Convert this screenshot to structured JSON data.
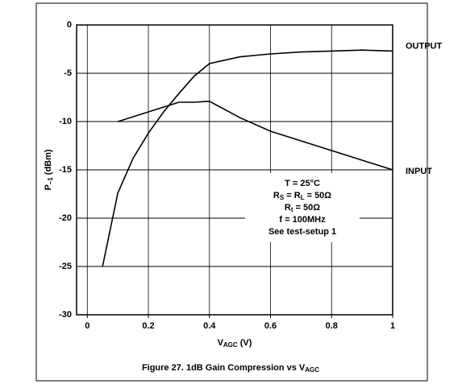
{
  "chart_data": {
    "type": "line",
    "title": [
      {
        "text": "Figure 27.  1dB Gain Compression vs V"
      },
      {
        "text": "AGC",
        "sub": true
      }
    ],
    "xlabel": [
      {
        "text": "V"
      },
      {
        "text": "AGC",
        "sub": true
      },
      {
        "text": " (V)"
      }
    ],
    "ylabel": [
      {
        "text": "P"
      },
      {
        "text": "–1",
        "sub": true
      },
      {
        "text": " (dBm)"
      }
    ],
    "x": [
      0.05,
      0.1,
      0.15,
      0.2,
      0.25,
      0.3,
      0.35,
      0.4,
      0.5,
      0.6,
      0.7,
      0.8,
      0.9,
      1
    ],
    "series": [
      {
        "name": "OUTPUT",
        "color": "#000000",
        "values": [
          -25,
          -17.4,
          -13.8,
          -11.2,
          -9,
          -7.1,
          -5.3,
          -4,
          -3.3,
          -3,
          -2.8,
          -2.7,
          -2.6,
          -2.7
        ]
      },
      {
        "name": "INPUT",
        "color": "#000000",
        "values": [
          null,
          -10,
          -9.5,
          -9,
          -8.5,
          -8,
          -8,
          -7.9,
          -9.6,
          -11,
          -12,
          -13,
          -14,
          -15
        ]
      }
    ],
    "xlim": [
      -0.035,
      1
    ],
    "xticks": [
      0,
      0.2,
      0.4,
      0.6,
      0.8,
      1
    ],
    "ylim": [
      -30,
      0
    ],
    "yticks": [
      0,
      -5,
      -10,
      -15,
      -20,
      -25,
      -30
    ],
    "grid": true,
    "annotation": [
      [
        {
          "text": "T = 25°C"
        }
      ],
      [
        {
          "text": "R"
        },
        {
          "text": "S",
          "sub": true
        },
        {
          "text": " = R"
        },
        {
          "text": "L",
          "sub": true
        },
        {
          "text": " = 50Ω"
        }
      ],
      [
        {
          "text": "R"
        },
        {
          "text": "t",
          "sub": true
        },
        {
          "text": " = 50Ω"
        }
      ],
      [
        {
          "text": "f = 100MHz"
        }
      ],
      [
        {
          "text": "See test-setup 1"
        }
      ]
    ]
  }
}
